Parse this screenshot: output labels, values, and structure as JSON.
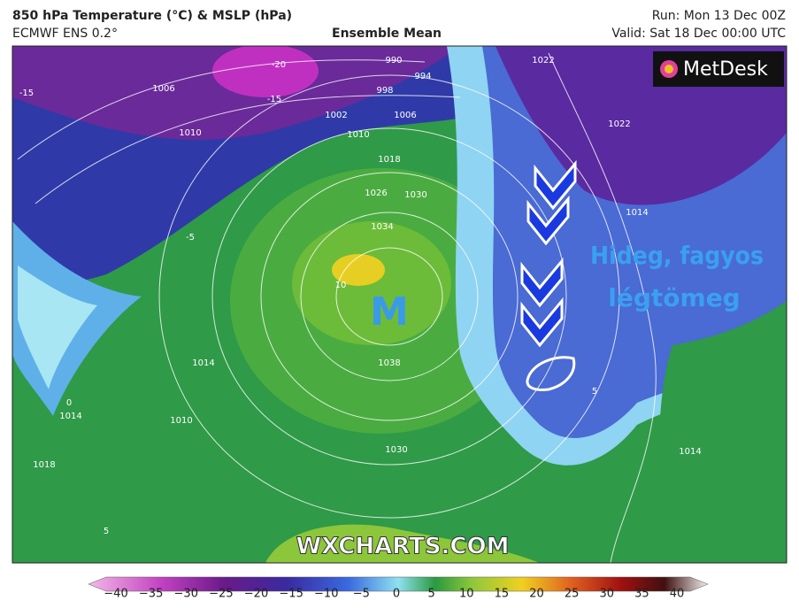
{
  "header": {
    "title": "850 hPa Temperature (°C) & MSLP (hPa)",
    "model": "ECMWF ENS 0.2°",
    "subtitle": "Ensemble Mean",
    "run": "Run: Mon 13 Dec 00Z",
    "valid": "Valid: Sat 18 Dec 00:00 UTC"
  },
  "map": {
    "logo": "MetDesk",
    "watermark": "WXCHARTS.COM",
    "high_label": "M",
    "annotation": [
      "Hideg, fagyos",
      "légtömeg"
    ],
    "contour_labels": [
      "990",
      "994",
      "998",
      "1002",
      "1006",
      "1010",
      "1018",
      "1026",
      "1030",
      "1034",
      "1038",
      "1030",
      "1022",
      "1022",
      "1014",
      "1014",
      "1014",
      "1010",
      "1018",
      "1006",
      "1010",
      "-20",
      "-15",
      "-15",
      "-5",
      "0",
      "10",
      "5",
      "1014",
      "5"
    ]
  },
  "colorbar": {
    "ticks": [
      "−40",
      "−35",
      "−30",
      "−25",
      "−20",
      "−15",
      "−10",
      "−5",
      "0",
      "5",
      "10",
      "15",
      "20",
      "25",
      "30",
      "35",
      "40"
    ]
  }
}
